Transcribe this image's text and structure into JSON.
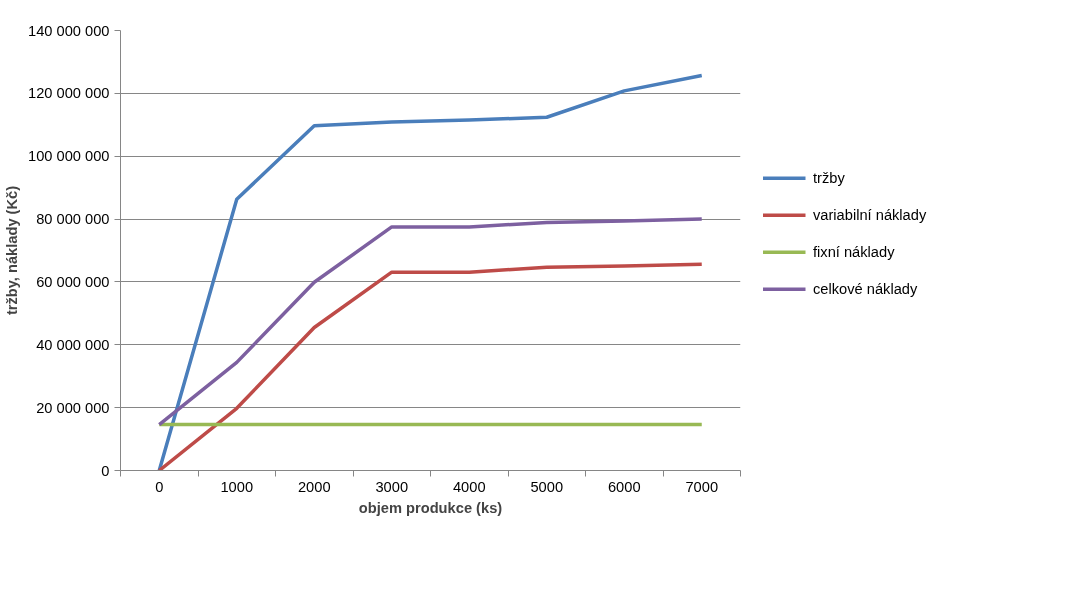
{
  "chart_data": {
    "type": "line",
    "xlabel": "objem produkce (ks)",
    "ylabel": "tržby, náklady (Kč)",
    "categories": [
      "0",
      "1000",
      "2000",
      "3000",
      "4000",
      "5000",
      "6000",
      "7000"
    ],
    "ylim": [
      0,
      140000000
    ],
    "yticks": [
      {
        "value": 0,
        "label": "0"
      },
      {
        "value": 20000000,
        "label": "20 000 000"
      },
      {
        "value": 40000000,
        "label": "40 000 000"
      },
      {
        "value": 60000000,
        "label": "60 000 000"
      },
      {
        "value": 80000000,
        "label": "80 000 000"
      },
      {
        "value": 100000000,
        "label": "100 000 000"
      },
      {
        "value": 120000000,
        "label": "120 000 000"
      },
      {
        "value": 140000000,
        "label": "140 000 000"
      }
    ],
    "grid": "y",
    "legend": "right",
    "marker": "none",
    "line_style": "solid",
    "series": [
      {
        "name": "tržby",
        "color": "#4a7ebb",
        "values": [
          0,
          86300000,
          109700000,
          110900000,
          111500000,
          112400000,
          120800000,
          125700000
        ]
      },
      {
        "name": "variabilní náklady",
        "color": "#be4b48",
        "values": [
          0,
          19800000,
          45500000,
          63100000,
          63100000,
          64700000,
          65100000,
          65600000
        ]
      },
      {
        "name": "fixní náklady",
        "color": "#98b954",
        "values": [
          14600000,
          14600000,
          14600000,
          14600000,
          14600000,
          14600000,
          14600000,
          14600000
        ]
      },
      {
        "name": "celkové náklady",
        "color": "#7d60a0",
        "values": [
          14600000,
          34400000,
          59900000,
          77500000,
          77500000,
          78900000,
          79400000,
          80000000
        ]
      }
    ]
  }
}
